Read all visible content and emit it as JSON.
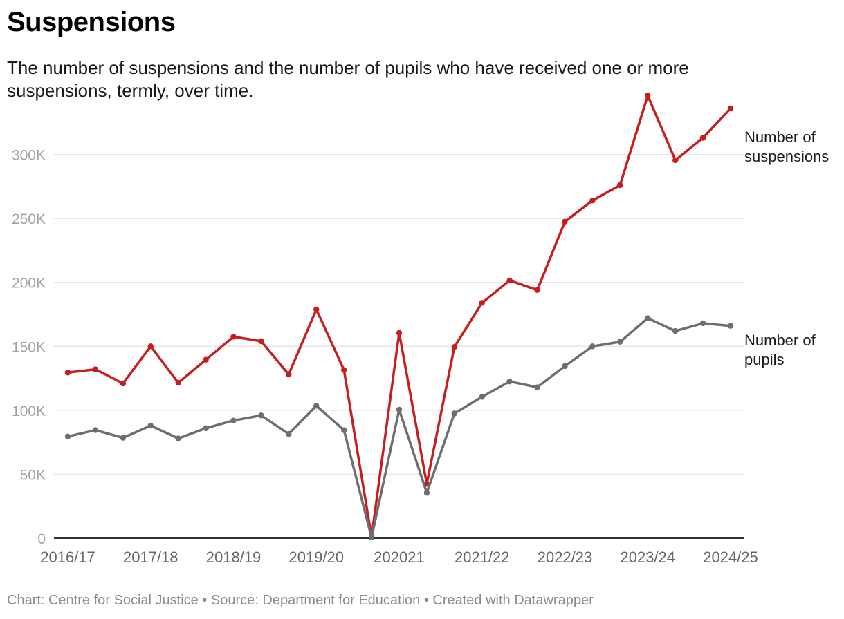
{
  "header": {
    "title": "Suspensions",
    "subtitle": "The number of suspensions and the number of pupils who have received one or more suspensions, termly, over time."
  },
  "footer": {
    "credit": "Chart: Centre for Social Justice • Source: Department for Education • Created with Datawrapper"
  },
  "chart_data": {
    "type": "line",
    "title": "Suspensions",
    "xlabel": "",
    "ylabel": "",
    "ylim": [
      0,
      350000
    ],
    "yticks": [
      0,
      50000,
      100000,
      150000,
      200000,
      250000,
      300000
    ],
    "ytick_labels": [
      "0",
      "50K",
      "100K",
      "150K",
      "200K",
      "250K",
      "300K"
    ],
    "xtick_labels": [
      {
        "label": "2016/17",
        "index": 0
      },
      {
        "label": "2017/18",
        "index": 3
      },
      {
        "label": "2018/19",
        "index": 6
      },
      {
        "label": "2019/20",
        "index": 9
      },
      {
        "label": "202021",
        "index": 12
      },
      {
        "label": "2021/22",
        "index": 15
      },
      {
        "label": "2022/23",
        "index": 18
      },
      {
        "label": "2023/24",
        "index": 21
      },
      {
        "label": "2024/25",
        "index": 24
      }
    ],
    "grid": true,
    "legend": "direct labels at right end of lines",
    "colors": {
      "suspensions": "#c71e1d",
      "pupils": "#6e6e6e",
      "grid": "#e6e6e6",
      "axis": "#333333",
      "tick_text": "#a3a3a3"
    },
    "series": [
      {
        "name": "Number of suspensions",
        "label_lines": [
          "Number of",
          "suspensions"
        ],
        "color": "#c71e1d",
        "values": [
          129500,
          132000,
          121000,
          150000,
          121500,
          139500,
          157500,
          154000,
          128000,
          178800,
          131500,
          1000,
          160500,
          42500,
          149500,
          184000,
          201500,
          194000,
          247500,
          264000,
          276000,
          346000,
          295500,
          313000,
          336000
        ]
      },
      {
        "name": "Number of pupils",
        "label_lines": [
          "Number of",
          "pupils"
        ],
        "color": "#6e6e6e",
        "values": [
          79500,
          84500,
          78500,
          88000,
          78000,
          86000,
          92000,
          96000,
          81500,
          103500,
          84500,
          500,
          100500,
          35500,
          97500,
          110500,
          122500,
          118000,
          134500,
          150000,
          153500,
          172000,
          162000,
          168000,
          166000
        ]
      }
    ]
  }
}
